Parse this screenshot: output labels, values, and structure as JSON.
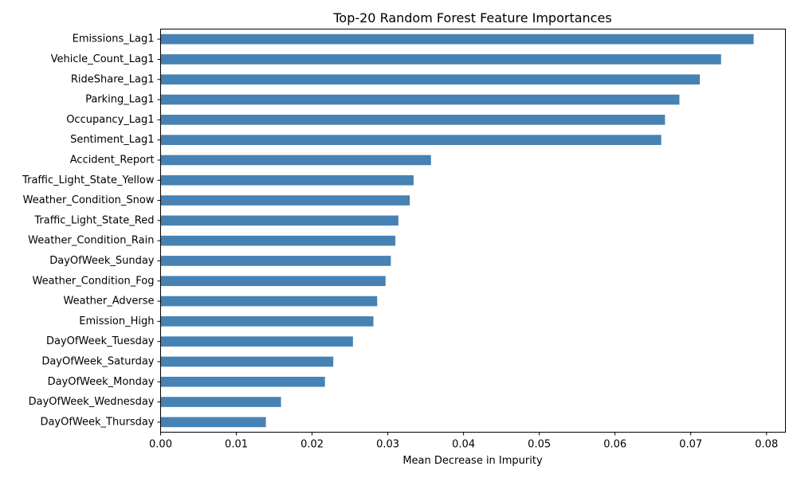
{
  "chart_data": {
    "type": "bar",
    "orientation": "horizontal",
    "title": "Top-20 Random Forest Feature Importances",
    "xlabel": "Mean Decrease in Impurity",
    "ylabel": "",
    "xlim": [
      0,
      0.0825
    ],
    "xticks": [
      0.0,
      0.01,
      0.02,
      0.03,
      0.04,
      0.05,
      0.06,
      0.07,
      0.08
    ],
    "xtick_labels": [
      "0.00",
      "0.01",
      "0.02",
      "0.03",
      "0.04",
      "0.05",
      "0.06",
      "0.07",
      "0.08"
    ],
    "grid": false,
    "bar_color": "#4682b4",
    "categories": [
      "Emissions_Lag1",
      "Vehicle_Count_Lag1",
      "RideShare_Lag1",
      "Parking_Lag1",
      "Occupancy_Lag1",
      "Sentiment_Lag1",
      "Accident_Report",
      "Traffic_Light_State_Yellow",
      "Weather_Condition_Snow",
      "Traffic_Light_State_Red",
      "Weather_Condition_Rain",
      "DayOfWeek_Sunday",
      "Weather_Condition_Fog",
      "Weather_Adverse",
      "Emission_High",
      "DayOfWeek_Tuesday",
      "DayOfWeek_Saturday",
      "DayOfWeek_Monday",
      "DayOfWeek_Wednesday",
      "DayOfWeek_Thursday"
    ],
    "values": [
      0.0783,
      0.074,
      0.0712,
      0.0685,
      0.0666,
      0.0661,
      0.0357,
      0.0334,
      0.0329,
      0.0314,
      0.031,
      0.0304,
      0.0297,
      0.0286,
      0.0281,
      0.0254,
      0.0228,
      0.0217,
      0.0159,
      0.0139
    ]
  }
}
